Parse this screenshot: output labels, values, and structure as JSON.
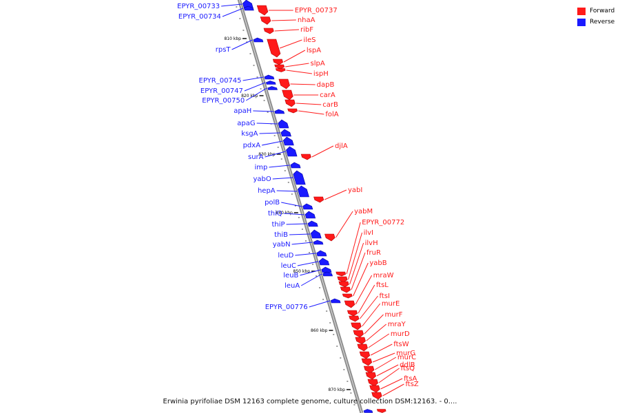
{
  "legend": {
    "forward_label": "Forward",
    "reverse_label": "Reverse",
    "forward_color": "#ff1a1a",
    "reverse_color": "#1a1aff"
  },
  "caption": "Erwinia pyrifoliae DSM 12163 complete genome, culture collection DSM:12163. - 0....",
  "scale_labels": [
    "810 kbp",
    "820 kbp",
    "830 kbp",
    "840 kbp",
    "850 kbp",
    "860 kbp",
    "870 kbp"
  ],
  "reverse_genes": [
    "EPYR_00733",
    "EPYR_00734",
    "rpsT",
    "EPYR_00745",
    "EPYR_00747",
    "EPYR_00750",
    "apaH",
    "apaG",
    "ksgA",
    "pdxA",
    "surA",
    "imp",
    "yabO",
    "hepA",
    "polB",
    "thiQ",
    "thiP",
    "thiB",
    "yabN",
    "leuD",
    "leuC",
    "leuB",
    "leuA",
    "EPYR_00776"
  ],
  "forward_genes": [
    "EPYR_00737",
    "nhaA",
    "ribF",
    "ileS",
    "lspA",
    "slpA",
    "ispH",
    "dapB",
    "carA",
    "carB",
    "folA",
    "djlA",
    "yabI",
    "yabM",
    "EPYR_00772",
    "ilvI",
    "ilvH",
    "fruR",
    "yabB",
    "mraW",
    "ftsL",
    "ftsI",
    "murE",
    "murF",
    "mraY",
    "murD",
    "ftsW",
    "murG",
    "murC",
    "ddlB",
    "ftsQ",
    "ftsA",
    "ftsZ"
  ]
}
